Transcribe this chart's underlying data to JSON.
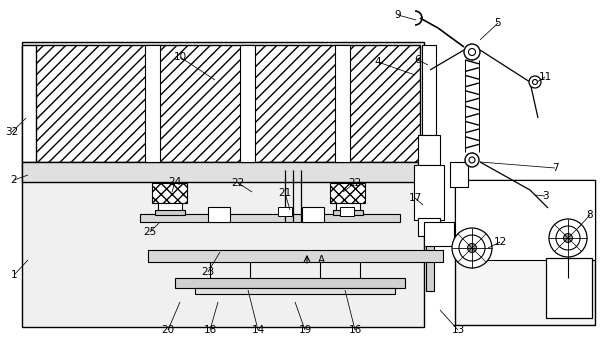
{
  "bg_color": "#ffffff",
  "figsize": [
    6.1,
    3.44
  ],
  "dpi": 100
}
